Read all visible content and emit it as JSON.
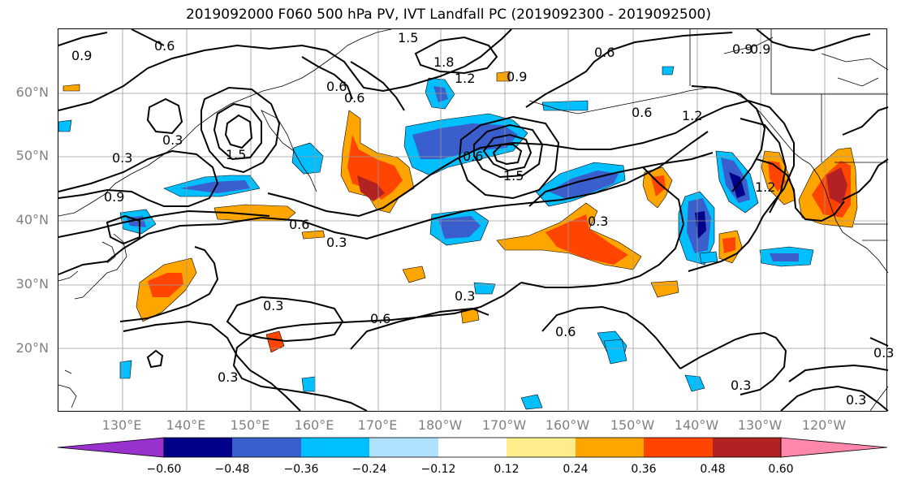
{
  "title": "2019092000 F060 500 hPa PV, IVT Landfall PC (2019092300 - 2019092500)",
  "lat_labels": [
    "60°N",
    "50°N",
    "40°N",
    "30°N",
    "20°N"
  ],
  "lon_labels": [
    "130°E",
    "140°E",
    "150°E",
    "160°E",
    "170°E",
    "180°W",
    "170°W",
    "160°W",
    "150°W",
    "140°W",
    "130°W",
    "120°W"
  ],
  "contour_labels": [
    "0.9",
    "0.6",
    "1.5",
    "1.8",
    "1.2",
    "0.9",
    "0.6",
    "0.9",
    "0.3",
    "0.6",
    "1.5",
    "0.6",
    "0.9",
    "0.3",
    "0.6",
    "0.3",
    "0.6",
    "1.5",
    "1.2",
    "0.6",
    "1.2",
    "0.3",
    "0.6",
    "0.3",
    "0.3",
    "0.3",
    "0.6",
    "0.9",
    "0.3",
    "0.3",
    "0.3"
  ],
  "colorbar": {
    "colors": [
      "#9932cc",
      "#00008b",
      "#3a5fcd",
      "#00bfff",
      "#b0e2ff",
      "#ffffff",
      "#ffec8b",
      "#ffa500",
      "#ff4500",
      "#b22222",
      "#ff88aa"
    ],
    "ticks": [
      "−0.60",
      "−0.48",
      "−0.36",
      "−0.24",
      "−0.12",
      "0.12",
      "0.24",
      "0.36",
      "0.48",
      "0.60"
    ]
  }
}
